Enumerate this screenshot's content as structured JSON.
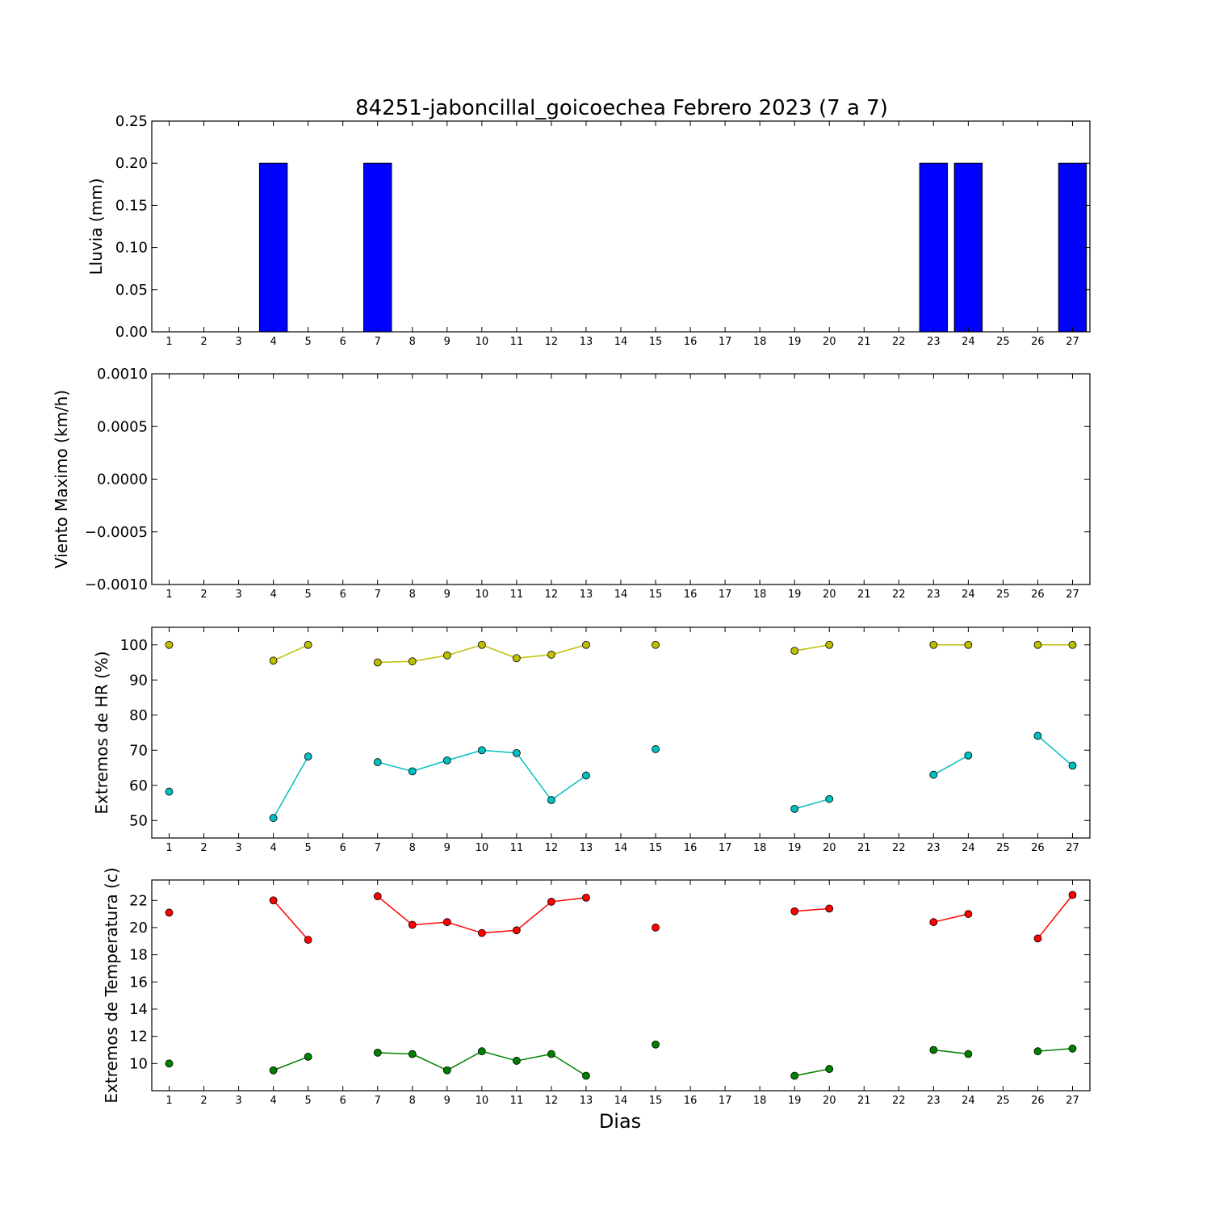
{
  "title": "84251-jaboncillal_goicoechea Febrero 2023  (7 a 7)",
  "xlabel": "Dias",
  "days": [
    1,
    2,
    3,
    4,
    5,
    6,
    7,
    8,
    9,
    10,
    11,
    12,
    13,
    14,
    15,
    16,
    17,
    18,
    19,
    20,
    21,
    22,
    23,
    24,
    25,
    26,
    27
  ],
  "chart_data": [
    {
      "type": "bar",
      "ylabel": "Lluvia (mm)",
      "ylim": [
        0,
        0.25
      ],
      "yticks": [
        "0.00",
        "0.05",
        "0.10",
        "0.15",
        "0.20",
        "0.25"
      ],
      "x": [
        1,
        2,
        3,
        4,
        5,
        6,
        7,
        8,
        9,
        10,
        11,
        12,
        13,
        14,
        15,
        16,
        17,
        18,
        19,
        20,
        21,
        22,
        23,
        24,
        25,
        26,
        27
      ],
      "values": [
        0,
        0,
        0,
        0.2,
        0,
        0,
        0.2,
        0,
        0,
        0,
        0,
        0,
        0,
        0,
        0,
        0,
        0,
        0,
        0,
        0,
        0,
        0,
        0.2,
        0.2,
        0,
        0,
        0.2
      ],
      "color": "#0000ff"
    },
    {
      "type": "line",
      "ylabel": "Viento Maximo (km/h)",
      "ylim": [
        -0.001,
        0.001
      ],
      "yticks": [
        "−0.0010",
        "−0.0005",
        "0.0000",
        "0.0005",
        "0.0010"
      ],
      "series": []
    },
    {
      "type": "line",
      "ylabel": "Extremos de HR (%)",
      "ylim": [
        45,
        105
      ],
      "yticks": [
        "50",
        "60",
        "70",
        "80",
        "90",
        "100"
      ],
      "series": [
        {
          "color": "#bfbf00",
          "x": [
            1,
            2,
            3,
            4,
            5,
            6,
            7,
            8,
            9,
            10,
            11,
            12,
            13,
            14,
            15,
            16,
            17,
            18,
            19,
            20,
            21,
            22,
            23,
            24,
            25,
            26,
            27
          ],
          "values": [
            100,
            null,
            null,
            95.5,
            100,
            null,
            95,
            95.3,
            97,
            100,
            96.2,
            97.2,
            100,
            null,
            100,
            null,
            null,
            null,
            98.3,
            100,
            null,
            null,
            100,
            100,
            null,
            100,
            100
          ]
        },
        {
          "color": "#00bfbf",
          "x": [
            1,
            2,
            3,
            4,
            5,
            6,
            7,
            8,
            9,
            10,
            11,
            12,
            13,
            14,
            15,
            16,
            17,
            18,
            19,
            20,
            21,
            22,
            23,
            24,
            25,
            26,
            27
          ],
          "values": [
            58.2,
            null,
            null,
            50.7,
            68.2,
            null,
            66.6,
            64,
            67.1,
            70,
            69.2,
            55.8,
            62.8,
            null,
            70.3,
            null,
            null,
            null,
            53.3,
            56.1,
            null,
            null,
            63,
            68.5,
            null,
            74.1,
            65.6
          ]
        }
      ]
    },
    {
      "type": "line",
      "ylabel": "Extremos de Temperatura (c)",
      "ylim": [
        8,
        23.5
      ],
      "yticks": [
        "10",
        "12",
        "14",
        "16",
        "18",
        "20",
        "22"
      ],
      "series": [
        {
          "color": "#ff0000",
          "x": [
            1,
            2,
            3,
            4,
            5,
            6,
            7,
            8,
            9,
            10,
            11,
            12,
            13,
            14,
            15,
            16,
            17,
            18,
            19,
            20,
            21,
            22,
            23,
            24,
            25,
            26,
            27
          ],
          "values": [
            21.1,
            null,
            null,
            22,
            19.1,
            null,
            22.3,
            20.2,
            20.4,
            19.6,
            19.8,
            21.9,
            22.2,
            null,
            20,
            null,
            null,
            null,
            21.2,
            21.4,
            null,
            null,
            20.4,
            21,
            null,
            19.2,
            22.4
          ]
        },
        {
          "color": "#008000",
          "x": [
            1,
            2,
            3,
            4,
            5,
            6,
            7,
            8,
            9,
            10,
            11,
            12,
            13,
            14,
            15,
            16,
            17,
            18,
            19,
            20,
            21,
            22,
            23,
            24,
            25,
            26,
            27
          ],
          "values": [
            10,
            null,
            null,
            9.5,
            10.5,
            null,
            10.8,
            10.7,
            9.5,
            10.9,
            10.2,
            10.7,
            9.1,
            null,
            11.4,
            null,
            null,
            null,
            9.1,
            9.6,
            null,
            null,
            11,
            10.7,
            null,
            10.9,
            11.1
          ]
        }
      ]
    }
  ]
}
